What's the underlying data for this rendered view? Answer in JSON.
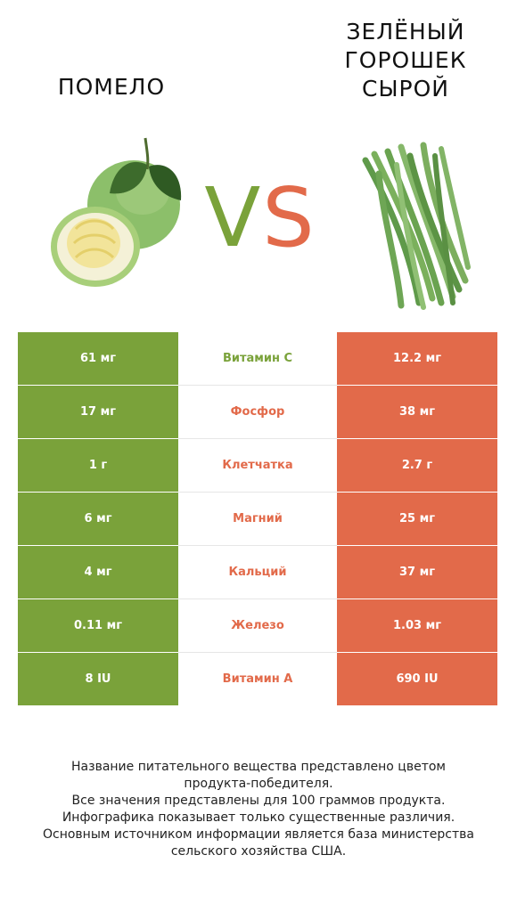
{
  "left_product": {
    "name": "ПОМЕЛО",
    "color": "#7aa23a"
  },
  "right_product": {
    "name": "ЗЕЛЁНЫЙ\nГОРОШЕК\nСЫРОЙ",
    "color": "#e26a4a"
  },
  "vs": {
    "v": "V",
    "s": "S"
  },
  "rows": [
    {
      "left": "61 мг",
      "nutrient": "Витамин C",
      "right": "12.2 мг",
      "winner": "left"
    },
    {
      "left": "17 мг",
      "nutrient": "Фосфор",
      "right": "38 мг",
      "winner": "right"
    },
    {
      "left": "1 г",
      "nutrient": "Клетчатка",
      "right": "2.7 г",
      "winner": "right"
    },
    {
      "left": "6 мг",
      "nutrient": "Магний",
      "right": "25 мг",
      "winner": "right"
    },
    {
      "left": "4 мг",
      "nutrient": "Кальций",
      "right": "37 мг",
      "winner": "right"
    },
    {
      "left": "0.11 мг",
      "nutrient": "Железо",
      "right": "1.03 мг",
      "winner": "right"
    },
    {
      "left": "8 IU",
      "nutrient": "Витамин A",
      "right": "690 IU",
      "winner": "right"
    }
  ],
  "footer": "Название питательного вещества представлено цветом\nпродукта-победителя.\nВсе значения представлены для 100 граммов продукта.\nИнфографика показывает только существенные различия.\nОсновным источником информации является база министерства\nсельского хозяйства США."
}
